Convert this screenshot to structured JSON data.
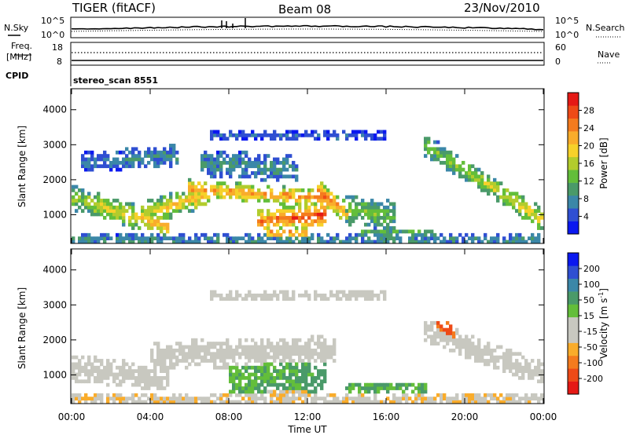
{
  "header": {
    "radar": "TIGER (fitACF)",
    "beam": "Beam 08",
    "date": "23/Nov/2010"
  },
  "top_panels": {
    "nsky_label": "N.Sky",
    "nsky_ticks": [
      "10^5",
      "10^0"
    ],
    "nsearch_label": "N.Search",
    "nsearch_ticks": [
      "10^5",
      "10^0"
    ],
    "freq_label_line1": "Freq.",
    "freq_label_line2": "[MHz]",
    "freq_ticks": [
      "18",
      "8"
    ],
    "nave_label": "Nave",
    "nave_ticks": [
      "60",
      "0"
    ],
    "cpid_label": "CPID",
    "cpid_value": "stereo_scan 8551"
  },
  "chart_data": [
    {
      "type": "heatmap",
      "name": "power",
      "xlabel": "Time UT",
      "ylabel": "Slant Range [km]",
      "x_ticks": [
        "00:00",
        "04:00",
        "08:00",
        "12:00",
        "16:00",
        "20:00",
        "00:00"
      ],
      "xlim_hours": [
        0,
        24
      ],
      "y_ticks": [
        1000,
        2000,
        3000,
        4000
      ],
      "ylim": [
        180,
        4600
      ],
      "colorbar": {
        "label": "Power [dB]",
        "ticks": [
          4,
          8,
          12,
          16,
          20,
          24,
          28
        ],
        "range": [
          0,
          32
        ],
        "colors": [
          "#0a18f0",
          "#2f4fd2",
          "#3b87a8",
          "#4a9a69",
          "#63be3a",
          "#b2cc2d",
          "#f6d12a",
          "#f9ac2b",
          "#f47b1e",
          "#ee4a17",
          "#e51915"
        ]
      },
      "bands": [
        {
          "t0": 0.0,
          "t1": 5.0,
          "r0": 1500,
          "r1": 650,
          "w": 350,
          "v0": 14,
          "v1": 20
        },
        {
          "t0": 3.5,
          "t1": 7.0,
          "r0": 1000,
          "r1": 1600,
          "w": 350,
          "v0": 16,
          "v1": 20
        },
        {
          "t0": 6.0,
          "t1": 13.5,
          "r0": 1750,
          "r1": 1450,
          "w": 260,
          "v0": 21,
          "v1": 22
        },
        {
          "t0": 9.5,
          "t1": 13.0,
          "r0": 820,
          "r1": 1000,
          "w": 330,
          "v0": 23,
          "v1": 27
        },
        {
          "t0": 12.5,
          "t1": 14.0,
          "r0": 1700,
          "r1": 1050,
          "w": 300,
          "v0": 24,
          "v1": 20
        },
        {
          "t0": 14.0,
          "t1": 16.5,
          "r0": 1150,
          "r1": 950,
          "w": 450,
          "v0": 12,
          "v1": 12
        },
        {
          "t0": 18.0,
          "t1": 24.0,
          "r0": 3000,
          "r1": 850,
          "w": 320,
          "v0": 12,
          "v1": 18
        },
        {
          "t0": 0.5,
          "t1": 5.5,
          "r0": 2500,
          "r1": 2700,
          "w": 300,
          "v0": 6,
          "v1": 8
        },
        {
          "t0": 6.5,
          "t1": 11.5,
          "r0": 2500,
          "r1": 2300,
          "w": 380,
          "v0": 8,
          "v1": 8
        },
        {
          "t0": 7.0,
          "t1": 16.0,
          "r0": 3250,
          "r1": 3250,
          "w": 140,
          "v0": 5,
          "v1": 5
        },
        {
          "t0": 10.0,
          "t1": 12.0,
          "r0": 480,
          "r1": 480,
          "w": 130,
          "v0": 24,
          "v1": 24
        },
        {
          "t0": 14.5,
          "t1": 18.5,
          "r0": 500,
          "r1": 500,
          "w": 120,
          "v0": 11,
          "v1": 11
        },
        {
          "t0": 0.0,
          "t1": 24.0,
          "r0": 280,
          "r1": 280,
          "w": 180,
          "v0": 8,
          "v1": 8
        }
      ]
    },
    {
      "type": "heatmap",
      "name": "velocity",
      "xlabel": "Time UT",
      "ylabel": "Slant Range [km]",
      "x_ticks": [
        "00:00",
        "04:00",
        "08:00",
        "12:00",
        "16:00",
        "20:00",
        "00:00"
      ],
      "xlim_hours": [
        0,
        24
      ],
      "y_ticks": [
        1000,
        2000,
        3000,
        4000
      ],
      "ylim": [
        180,
        4600
      ],
      "colorbar": {
        "label": "Velocity [m s-1]",
        "ticks": [
          "200",
          "100",
          "50",
          "15",
          "-15",
          "-50",
          "-100",
          "-200"
        ],
        "range": [
          -250,
          250
        ],
        "colors": [
          "#e51915",
          "#ee4a17",
          "#f47b1e",
          "#f9ac2b",
          "#c8c8c0",
          "#c8c8c0",
          "#63be3a",
          "#4a9a69",
          "#3b87a8",
          "#2f4fd2",
          "#0a18f0"
        ]
      },
      "bands": [
        {
          "t0": 0.0,
          "t1": 5.0,
          "r0": 1200,
          "r1": 900,
          "w": 380,
          "v0": 0,
          "v1": 0
        },
        {
          "t0": 4.0,
          "t1": 13.5,
          "r0": 1550,
          "r1": 1700,
          "w": 420,
          "v0": 0,
          "v1": 0
        },
        {
          "t0": 8.0,
          "t1": 13.0,
          "r0": 900,
          "r1": 900,
          "w": 520,
          "v0": 60,
          "v1": 80
        },
        {
          "t0": 18.0,
          "t1": 24.0,
          "r0": 2300,
          "r1": 1000,
          "w": 360,
          "v0": 0,
          "v1": 0
        },
        {
          "t0": 18.5,
          "t1": 19.5,
          "r0": 2500,
          "r1": 2100,
          "w": 260,
          "v0": -170,
          "v1": -150
        },
        {
          "t0": 10.0,
          "t1": 12.0,
          "r0": 480,
          "r1": 480,
          "w": 130,
          "v0": -70,
          "v1": -70
        },
        {
          "t0": 14.0,
          "t1": 18.0,
          "r0": 650,
          "r1": 650,
          "w": 140,
          "v0": 70,
          "v1": 70
        },
        {
          "t0": 7.0,
          "t1": 16.0,
          "r0": 3250,
          "r1": 3250,
          "w": 140,
          "v0": -20,
          "v1": -20
        },
        {
          "t0": 0.0,
          "t1": 24.0,
          "r0": 280,
          "r1": 280,
          "w": 200,
          "v0": -60,
          "v1": -60
        }
      ]
    }
  ]
}
